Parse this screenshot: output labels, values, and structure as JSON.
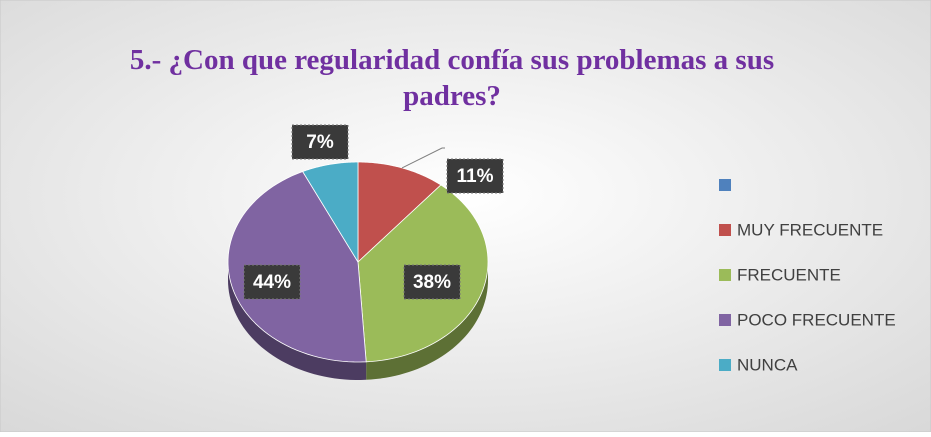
{
  "chart_data": {
    "type": "pie",
    "title": "5.- ¿Con que regularidad confía sus problemas a sus padres?",
    "categories": [
      null,
      "MUY FRECUENTE",
      "FRECUENTE",
      "POCO FRECUENTE",
      "NUNCA"
    ],
    "values": [
      null,
      11,
      38,
      44,
      7
    ],
    "value_labels": [
      null,
      "11%",
      "38%",
      "44%",
      "7%"
    ],
    "colors": [
      "#4f81bd",
      "#c0504d",
      "#9bbb59",
      "#8064a2",
      "#4bacc6"
    ],
    "legend": "right"
  }
}
